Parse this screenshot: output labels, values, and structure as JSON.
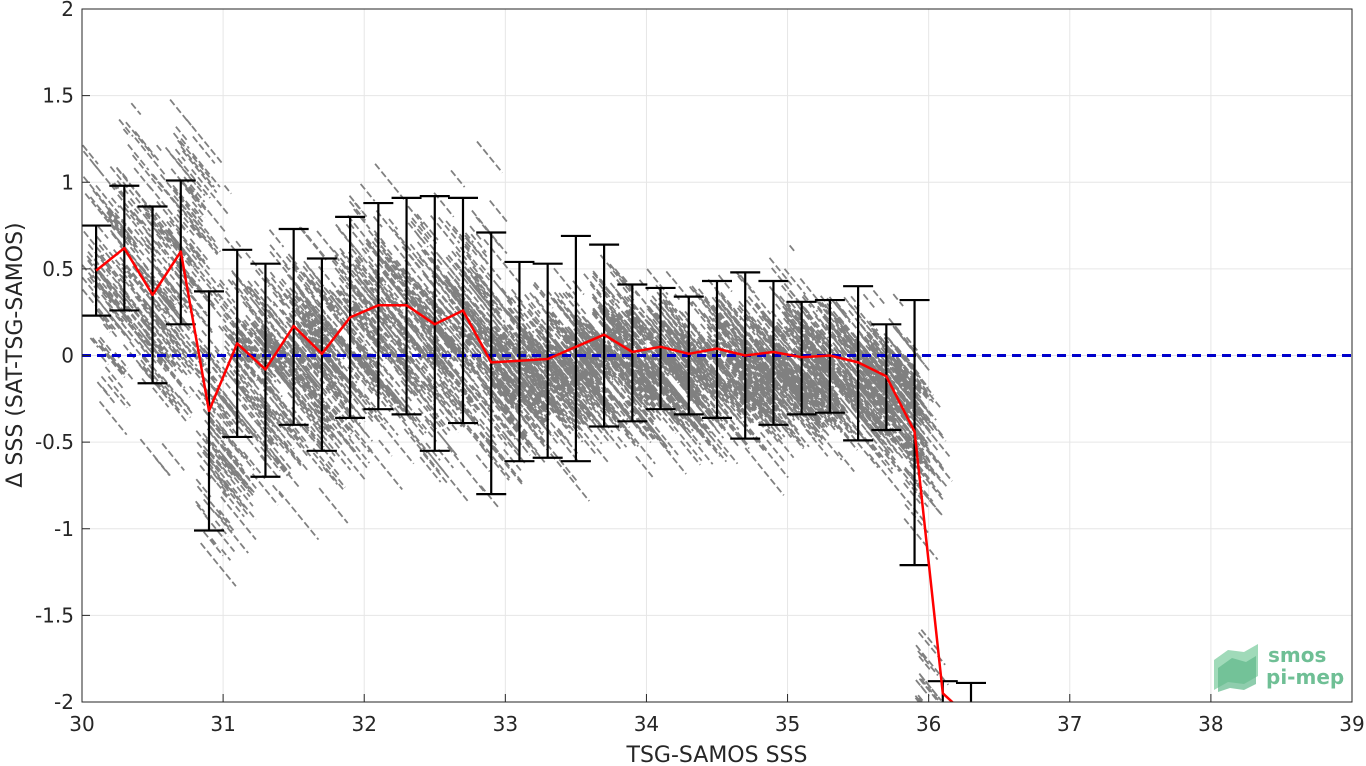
{
  "chart_data": {
    "type": "scatter",
    "xlabel": "TSG-SAMOS SSS",
    "ylabel": "Δ SSS (SAT-TSG-SAMOS)",
    "xlim": [
      30,
      39
    ],
    "ylim": [
      -2,
      2
    ],
    "x_ticks": [
      "30",
      "31",
      "32",
      "33",
      "34",
      "35",
      "36",
      "37",
      "38",
      "39"
    ],
    "y_ticks": [
      "2",
      "1.5",
      "1",
      "0.5",
      "0",
      "-0.5",
      "-1",
      "-1.5",
      "-2"
    ],
    "grid": true,
    "reference_line": {
      "y": 0,
      "color": "#0000cc",
      "style": "dashed"
    },
    "scatter_color": "#808080",
    "mean_line_color": "#ff0000",
    "errorbar_color": "#000000",
    "bins": {
      "x": [
        30.1,
        30.3,
        30.5,
        30.7,
        30.9,
        31.1,
        31.3,
        31.5,
        31.7,
        31.9,
        32.1,
        32.3,
        32.5,
        32.7,
        32.9,
        33.1,
        33.3,
        33.5,
        33.7,
        33.9,
        34.1,
        34.3,
        34.5,
        34.7,
        34.9,
        35.1,
        35.3,
        35.5,
        35.7,
        35.9,
        36.1,
        36.3
      ],
      "mean": [
        0.49,
        0.62,
        0.35,
        0.6,
        -0.32,
        0.07,
        -0.08,
        0.17,
        0.01,
        0.22,
        0.29,
        0.29,
        0.18,
        0.26,
        -0.04,
        -0.03,
        -0.02,
        0.05,
        0.12,
        0.02,
        0.05,
        0.01,
        0.04,
        0.0,
        0.02,
        -0.01,
        0.0,
        -0.04,
        -0.12,
        -0.44,
        -1.95,
        -2.1
      ],
      "upper": [
        0.75,
        0.98,
        0.86,
        1.01,
        0.37,
        0.61,
        0.53,
        0.73,
        0.56,
        0.8,
        0.88,
        0.91,
        0.92,
        0.91,
        0.71,
        0.54,
        0.53,
        0.69,
        0.64,
        0.41,
        0.39,
        0.34,
        0.43,
        0.48,
        0.43,
        0.31,
        0.32,
        0.4,
        0.18,
        0.32,
        -1.88,
        -1.89
      ],
      "lower": [
        0.23,
        0.26,
        -0.16,
        0.18,
        -1.01,
        -0.47,
        -0.7,
        -0.4,
        -0.55,
        -0.36,
        -0.31,
        -0.34,
        -0.55,
        -0.39,
        -0.8,
        -0.61,
        -0.59,
        -0.61,
        -0.41,
        -0.38,
        -0.31,
        -0.34,
        -0.36,
        -0.48,
        -0.4,
        -0.34,
        -0.33,
        -0.49,
        -0.43,
        -1.21,
        -2.1,
        -2.1
      ]
    }
  },
  "logo": {
    "line1": "smos",
    "line2": "pi-mep"
  },
  "colors": {
    "axis": "#262626",
    "grid": "#e6e6e6",
    "logo": "#6fbf95"
  }
}
